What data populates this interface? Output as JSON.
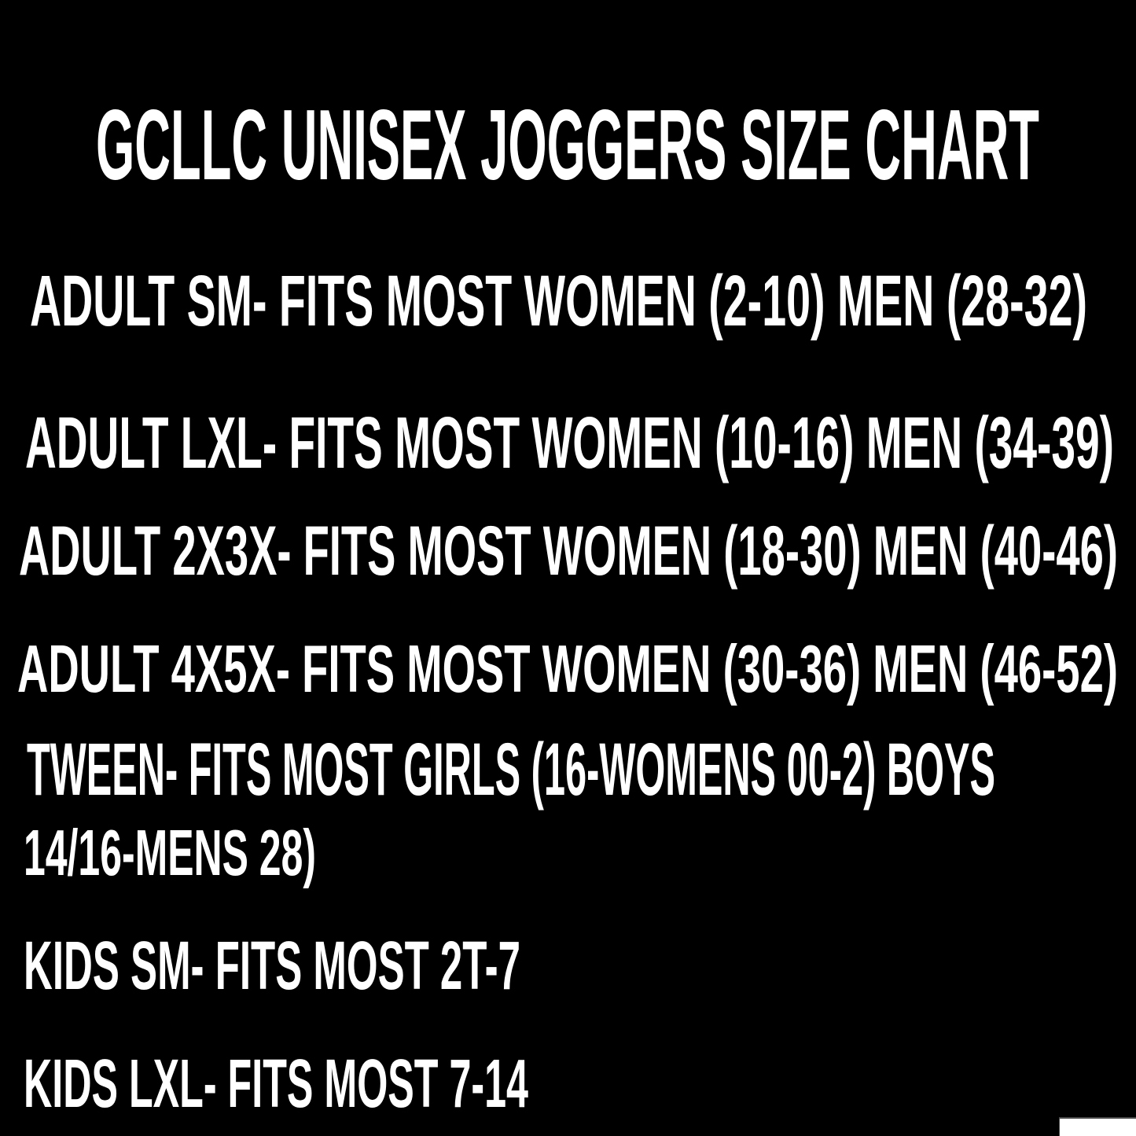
{
  "colors": {
    "background": "#000000",
    "text": "#ffffff"
  },
  "size_chart": {
    "title": "GCLLC UNISEX JOGGERS SIZE CHART",
    "rows": [
      {
        "text": "ADULT SM- FITS MOST WOMEN (2-10) MEN (28-32)"
      },
      {
        "text": "ADULT LXL- FITS MOST WOMEN (10-16) MEN (34-39)"
      },
      {
        "text": "ADULT 2X3X- FITS MOST WOMEN (18-30) MEN (40-46)"
      },
      {
        "text": "ADULT 4X5X- FITS MOST WOMEN (30-36) MEN (46-52)"
      },
      {
        "text": "TWEEN- FITS MOST GIRLS (16-WOMENS 00-2) BOYS"
      },
      {
        "text": "14/16-MENS 28)"
      },
      {
        "text": "KIDS SM- FITS MOST 2T-7"
      },
      {
        "text": "KIDS LXL- FITS MOST 7-14"
      }
    ]
  }
}
